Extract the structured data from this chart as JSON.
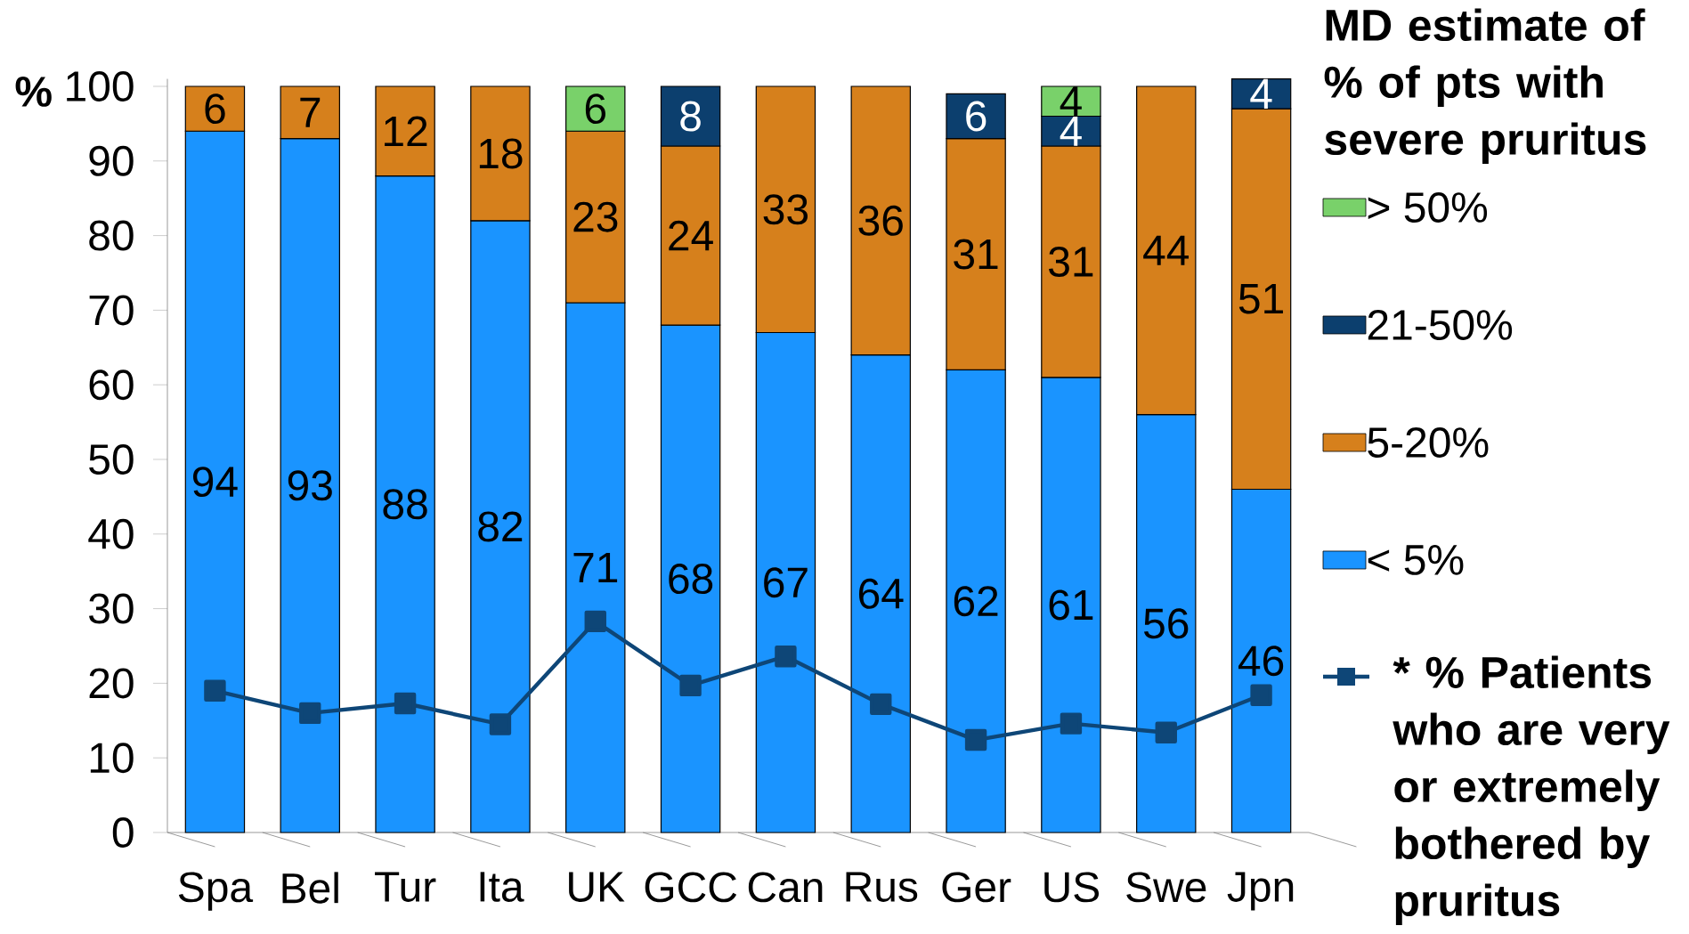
{
  "chart_data": {
    "type": "bar",
    "stacked": true,
    "ylabel": "%",
    "legend_title": "MD estimate of % of pts with severe pruritus",
    "legend": "right",
    "categories": [
      "Spa",
      "Bel",
      "Tur",
      "Ita",
      "UK",
      "GCC",
      "Can",
      "Rus",
      "Ger",
      "US",
      "Swe",
      "Jpn"
    ],
    "ylim": [
      0,
      101
    ],
    "yticks": [
      0,
      10,
      20,
      30,
      40,
      50,
      60,
      70,
      80,
      90,
      100
    ],
    "series": [
      {
        "name": "< 5%",
        "color": "#1a94ff",
        "values": [
          94,
          93,
          88,
          82,
          71,
          68,
          67,
          64,
          62,
          61,
          56,
          46
        ],
        "value_labels": [
          "94",
          "93",
          "88",
          "82",
          "71",
          "68",
          "67",
          "64",
          "62",
          "61",
          "56",
          "46"
        ]
      },
      {
        "name": "5-20%",
        "color": "#d6801c",
        "values": [
          6,
          7,
          12,
          18,
          23,
          24,
          33,
          36,
          31,
          31,
          44,
          51
        ],
        "value_labels": [
          "6",
          "7",
          "12",
          "18",
          "23",
          "24",
          "33",
          "36",
          "31",
          "31",
          "44",
          "51"
        ]
      },
      {
        "name": "21-50%",
        "color": "#0c3f6e",
        "values": [
          null,
          null,
          null,
          null,
          null,
          8,
          null,
          null,
          6,
          4,
          null,
          4
        ],
        "value_labels": [
          null,
          null,
          null,
          null,
          null,
          "8",
          null,
          null,
          "6",
          "4",
          null,
          "4"
        ]
      },
      {
        "name": "> 50%",
        "color": "#79d16a",
        "values": [
          null,
          null,
          null,
          null,
          6,
          null,
          null,
          null,
          null,
          4,
          null,
          null
        ],
        "value_labels": [
          null,
          null,
          null,
          null,
          "6",
          null,
          null,
          null,
          null,
          "4",
          null,
          null
        ]
      },
      {
        "name": "* % Patients who are very or extremely bothered by pruritus",
        "type": "line",
        "marker": "square",
        "color": "#0e4677",
        "values": [
          19,
          16,
          17.3,
          14.5,
          28.3,
          19.7,
          23.6,
          17.2,
          12.4,
          14.6,
          13.4,
          18.4
        ]
      }
    ]
  }
}
